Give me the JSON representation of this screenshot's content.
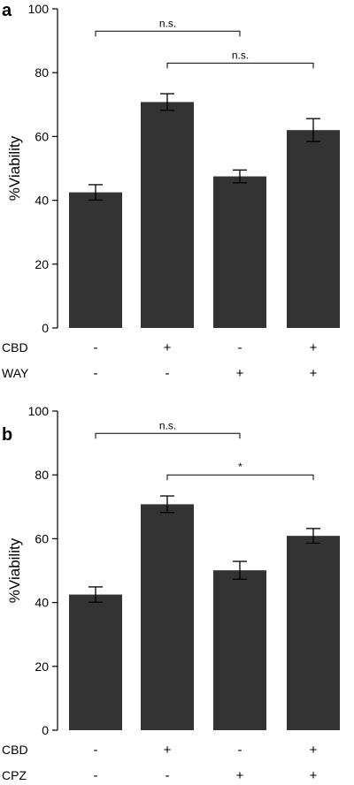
{
  "chart_data": [
    {
      "type": "bar",
      "panel": "a",
      "ylabel": "%Viability",
      "ylim": [
        0,
        100
      ],
      "yticks": [
        0,
        20,
        40,
        60,
        80,
        100
      ],
      "grid": false,
      "bar_color": "#333333",
      "values": [
        42.5,
        70.8,
        47.5,
        62.0
      ],
      "errors": [
        2.4,
        2.6,
        2.0,
        3.6
      ],
      "treatments": [
        {
          "label": "CBD",
          "signs": [
            "-",
            "+",
            "-",
            "+"
          ]
        },
        {
          "label": "WAY",
          "signs": [
            "-",
            "-",
            "+",
            "+"
          ]
        }
      ],
      "significance": [
        {
          "from": 0,
          "to": 2,
          "label": "n.s.",
          "y": 93
        },
        {
          "from": 1,
          "to": 3,
          "label": "n.s.",
          "y": 83
        }
      ]
    },
    {
      "type": "bar",
      "panel": "b",
      "ylabel": "%Viability",
      "ylim": [
        0,
        100
      ],
      "yticks": [
        0,
        20,
        40,
        60,
        80,
        100
      ],
      "grid": false,
      "bar_color": "#333333",
      "values": [
        42.5,
        70.8,
        50.1,
        60.9
      ],
      "errors": [
        2.4,
        2.6,
        2.8,
        2.3
      ],
      "treatments": [
        {
          "label": "CBD",
          "signs": [
            "-",
            "+",
            "-",
            "+"
          ]
        },
        {
          "label": "CPZ",
          "signs": [
            "-",
            "-",
            "+",
            "+"
          ]
        }
      ],
      "significance": [
        {
          "from": 0,
          "to": 2,
          "label": "n.s.",
          "y": 93
        },
        {
          "from": 1,
          "to": 3,
          "label": "*",
          "y": 80
        }
      ]
    }
  ]
}
